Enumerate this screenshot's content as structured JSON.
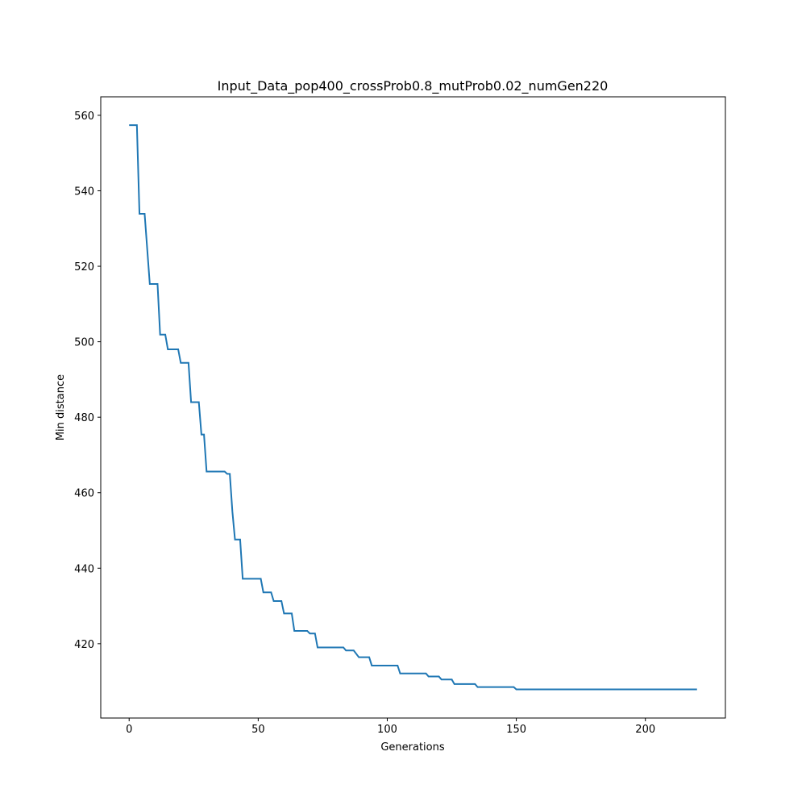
{
  "chart_data": {
    "type": "line",
    "title": "Input_Data_pop400_crossProb0.8_mutProb0.02_numGen220",
    "x_label": "Generations",
    "y_label": "Min distance",
    "xlim": [
      -11,
      231
    ],
    "ylim": [
      400.3,
      564.9
    ],
    "xticks": [
      0,
      50,
      100,
      150,
      200
    ],
    "yticks": [
      420,
      440,
      460,
      480,
      500,
      520,
      540,
      560
    ],
    "series": [
      {
        "color": "#1f77b4",
        "x": [
          0,
          3,
          4,
          6,
          8,
          11,
          12,
          14,
          15,
          19,
          20,
          23,
          24,
          27,
          28,
          29,
          30,
          37,
          38,
          39,
          40,
          41,
          43,
          44,
          51,
          52,
          55,
          56,
          59,
          60,
          63,
          64,
          69,
          70,
          72,
          73,
          83,
          84,
          87,
          89,
          93,
          94,
          104,
          105,
          115,
          116,
          120,
          121,
          125,
          126,
          134,
          135,
          149,
          150,
          220
        ],
        "values": [
          557.4,
          557.4,
          533.9,
          533.9,
          515.3,
          515.3,
          501.9,
          501.9,
          498,
          498,
          494.4,
          494.4,
          484,
          484,
          475.4,
          475.4,
          465.6,
          465.6,
          465,
          465,
          455,
          447.6,
          447.6,
          437.2,
          437.2,
          433.6,
          433.6,
          431.3,
          431.3,
          428,
          428,
          423.4,
          423.4,
          422.7,
          422.7,
          419,
          419,
          418.2,
          418.2,
          416.4,
          416.4,
          414.2,
          414.2,
          412.1,
          412.1,
          411.3,
          411.3,
          410.5,
          410.5,
          409.3,
          409.3,
          408.5,
          408.5,
          407.9,
          407.9
        ]
      }
    ]
  }
}
